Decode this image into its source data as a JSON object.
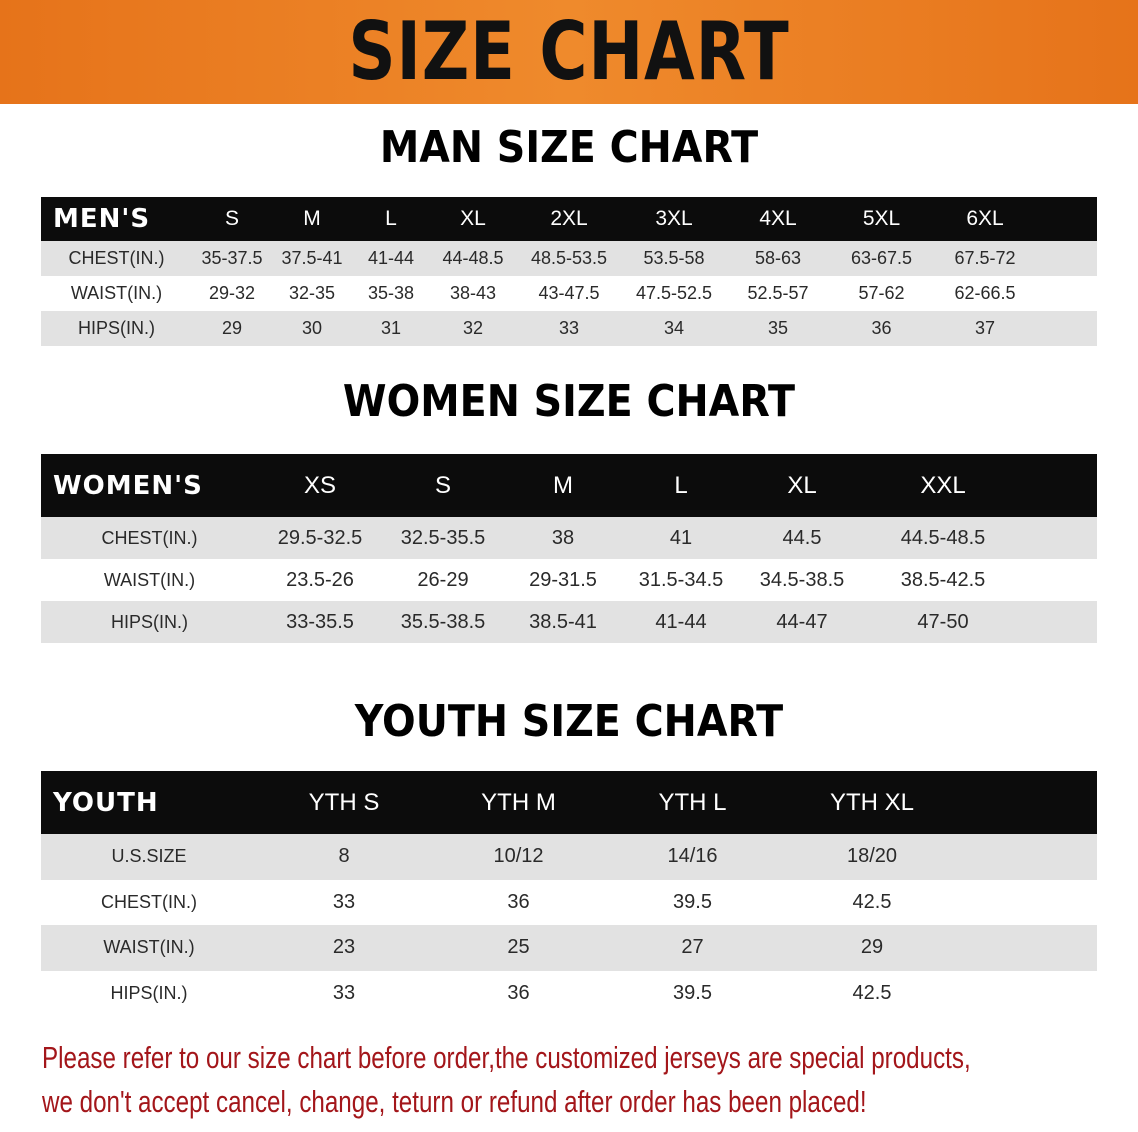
{
  "title": "SIZE CHART",
  "colors": {
    "banner": "#e6731a",
    "header_row": "#0c0c0c",
    "note_text": "#a3161a",
    "striped_row": "#e2e2e2"
  },
  "men": {
    "heading": "MAN SIZE CHART",
    "corner": "MEN'S",
    "columns": [
      "S",
      "M",
      "L",
      "XL",
      "2XL",
      "3XL",
      "4XL",
      "5XL",
      "6XL"
    ],
    "rows": [
      {
        "label": "CHEST(IN.)",
        "values": [
          "35-37.5",
          "37.5-41",
          "41-44",
          "44-48.5",
          "48.5-53.5",
          "53.5-58",
          "58-63",
          "63-67.5",
          "67.5-72"
        ]
      },
      {
        "label": "WAIST(IN.)",
        "values": [
          "29-32",
          "32-35",
          "35-38",
          "38-43",
          "43-47.5",
          "47.5-52.5",
          "52.5-57",
          "57-62",
          "62-66.5"
        ]
      },
      {
        "label": "HIPS(IN.)",
        "values": [
          "29",
          "30",
          "31",
          "32",
          "33",
          "34",
          "35",
          "36",
          "37"
        ]
      }
    ]
  },
  "women": {
    "heading": "WOMEN SIZE CHART",
    "corner": "WOMEN'S",
    "columns": [
      "XS",
      "S",
      "M",
      "L",
      "XL",
      "XXL"
    ],
    "rows": [
      {
        "label": "CHEST(IN.)",
        "values": [
          "29.5-32.5",
          "32.5-35.5",
          "38",
          "41",
          "44.5",
          "44.5-48.5"
        ]
      },
      {
        "label": "WAIST(IN.)",
        "values": [
          "23.5-26",
          "26-29",
          "29-31.5",
          "31.5-34.5",
          "34.5-38.5",
          "38.5-42.5"
        ]
      },
      {
        "label": "HIPS(IN.)",
        "values": [
          "33-35.5",
          "35.5-38.5",
          "38.5-41",
          "41-44",
          "44-47",
          "47-50"
        ]
      }
    ]
  },
  "youth": {
    "heading": "YOUTH SIZE CHART",
    "corner": "YOUTH",
    "columns": [
      "YTH S",
      "YTH M",
      "YTH L",
      "YTH XL"
    ],
    "rows": [
      {
        "label": "U.S.SIZE",
        "values": [
          "8",
          "10/12",
          "14/16",
          "18/20"
        ]
      },
      {
        "label": "CHEST(IN.)",
        "values": [
          "33",
          "36",
          "39.5",
          "42.5"
        ]
      },
      {
        "label": "WAIST(IN.)",
        "values": [
          "23",
          "25",
          "27",
          "29"
        ]
      },
      {
        "label": "HIPS(IN.)",
        "values": [
          "33",
          "36",
          "39.5",
          "42.5"
        ]
      }
    ]
  },
  "note": {
    "line1": "Please refer to our size chart before order,the customized jerseys are special products,",
    "line2": "we don't accept cancel, change, teturn or refund after order has been placed!"
  }
}
